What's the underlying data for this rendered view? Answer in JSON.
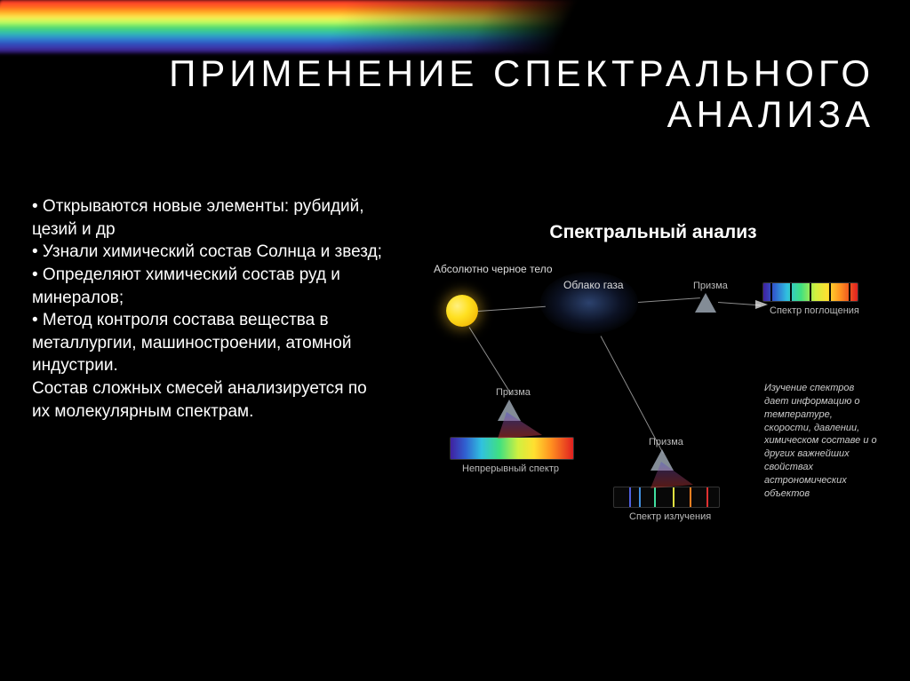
{
  "title_line1": "ПРИМЕНЕНИЕ СПЕКТРАЛЬНОГО",
  "title_line2": "АНАЛИЗА",
  "bullets": [
    "• Открываются новые элементы: рубидий, цезий и др",
    "• Узнали химический состав Солнца и звезд;",
    "• Определяют химический состав руд и минералов;",
    "• Метод контроля состава вещества в металлургии, машиностроении, атомной индустрии.",
    "Состав сложных смесей анализируется по их молекулярным спектрам."
  ],
  "diagram": {
    "title": "Спектральный анализ",
    "labels": {
      "blackbody": "Абсолютно черное тело",
      "gas_cloud": "Облако газа",
      "prism": "Призма",
      "continuous": "Непрерывный спектр",
      "absorption": "Спектр поглощения",
      "emission": "Спектр излучения"
    },
    "side_note": "Изучение спектров дает информацию о температуре, скорости, давлении, химическом составе и о других важнейших свойствах астрономических объектов",
    "emission_lines": [
      {
        "pos": 14,
        "color": "#5060e0"
      },
      {
        "pos": 24,
        "color": "#4090e0"
      },
      {
        "pos": 38,
        "color": "#40e0a0"
      },
      {
        "pos": 56,
        "color": "#e0e040"
      },
      {
        "pos": 72,
        "color": "#ff8020"
      },
      {
        "pos": 88,
        "color": "#e03030"
      }
    ],
    "prism_color": "#9aa4b0",
    "ray_color": "rgba(255,255,255,0.55)"
  }
}
